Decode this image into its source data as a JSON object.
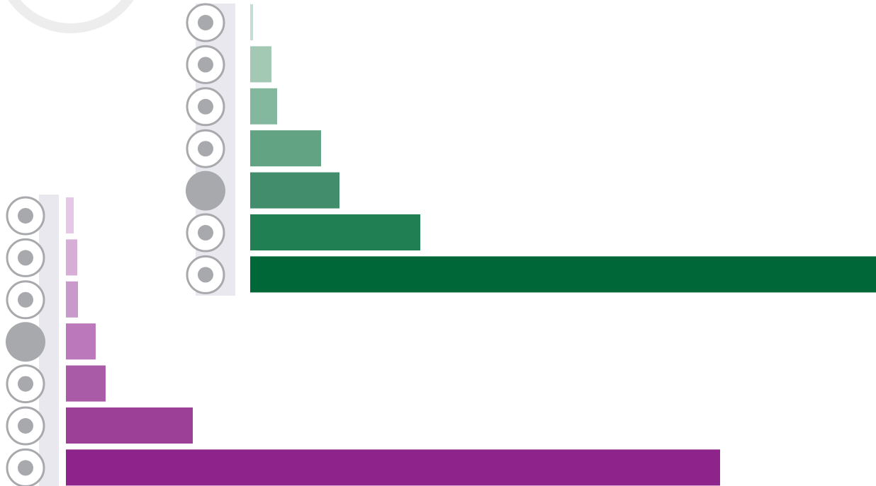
{
  "chart_data": [
    {
      "type": "bar",
      "orientation": "horizontal",
      "categories": [
        null,
        null,
        null,
        null,
        null,
        null,
        null
      ],
      "values": [
        4,
        30,
        38,
        100,
        126,
        240,
        883
      ],
      "colors": [
        "#c5ddd5",
        "#a3c9b5",
        "#84b89e",
        "#62a383",
        "#428d6c",
        "#217f54",
        "#006838"
      ]
    },
    {
      "type": "bar",
      "orientation": "horizontal",
      "categories": [
        null,
        null,
        null,
        null,
        null,
        null,
        null
      ],
      "values": [
        11,
        16,
        17,
        42,
        56,
        179,
        923
      ],
      "colors": [
        "#e6c8e6",
        "#d6aed6",
        "#c999cb",
        "#bb78bb",
        "#a95ba8",
        "#9c3f97",
        "#8e248b"
      ]
    }
  ]
}
